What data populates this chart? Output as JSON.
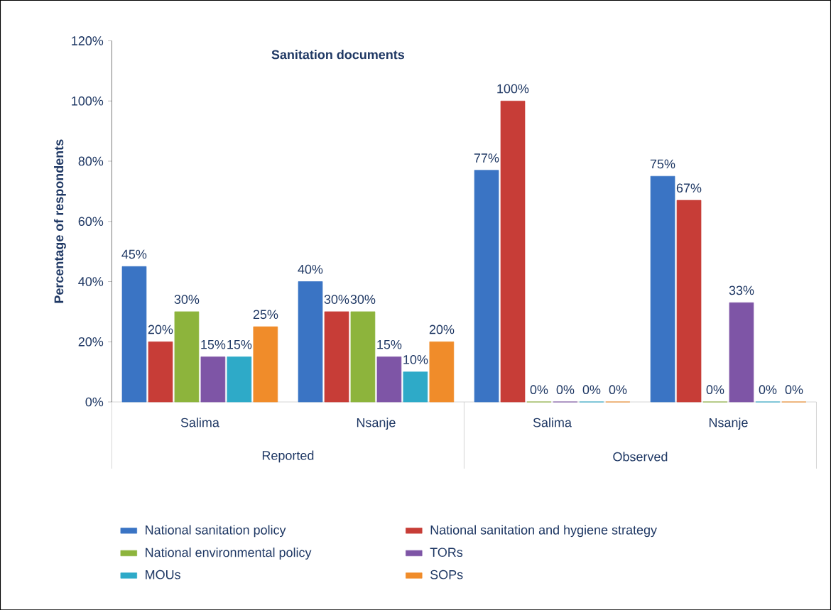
{
  "chart_data": {
    "type": "bar",
    "title": "Sanitation documents",
    "ylabel": "Percentage of respondents",
    "categories": [
      "Salima",
      "Nsanje",
      "Salima",
      "Nsanje"
    ],
    "annotations": [
      "Reported",
      "Observed"
    ],
    "series": [
      {
        "name": "National sanitation policy",
        "color": "#3a74c4",
        "values": [
          45,
          40,
          77,
          75
        ],
        "value_labels": [
          "45%",
          "40%",
          "77%",
          "75%"
        ]
      },
      {
        "name": "National sanitation and hygiene strategy",
        "color": "#c73d37",
        "values": [
          20,
          30,
          100,
          67
        ],
        "value_labels": [
          "20%",
          "30%",
          "100%",
          "67%"
        ]
      },
      {
        "name": "National environmental policy",
        "color": "#8db43c",
        "values": [
          30,
          30,
          0,
          0
        ],
        "value_labels": [
          "30%",
          "30%",
          "0%",
          "0%"
        ]
      },
      {
        "name": "TORs",
        "color": "#7e55a6",
        "values": [
          15,
          15,
          0,
          33
        ],
        "value_labels": [
          "15%",
          "15%",
          "0%",
          "33%"
        ]
      },
      {
        "name": "MOUs",
        "color": "#2eaac8",
        "values": [
          15,
          10,
          0,
          0
        ],
        "value_labels": [
          "15%",
          "10%",
          "0%",
          "0%"
        ]
      },
      {
        "name": "SOPs",
        "color": "#f08c2a",
        "values": [
          25,
          20,
          0,
          0
        ],
        "value_labels": [
          "25%",
          "20%",
          "0%",
          "0%"
        ]
      }
    ],
    "ylim": [
      0,
      120
    ],
    "yticks": [
      {
        "value": 0,
        "label": "0%"
      },
      {
        "value": 20,
        "label": "20%"
      },
      {
        "value": 40,
        "label": "40%"
      },
      {
        "value": 60,
        "label": "60%"
      },
      {
        "value": 80,
        "label": "80%"
      },
      {
        "value": 100,
        "label": "100%"
      },
      {
        "value": 120,
        "label": "120%"
      }
    ],
    "grid": false,
    "legend": "bottom"
  }
}
